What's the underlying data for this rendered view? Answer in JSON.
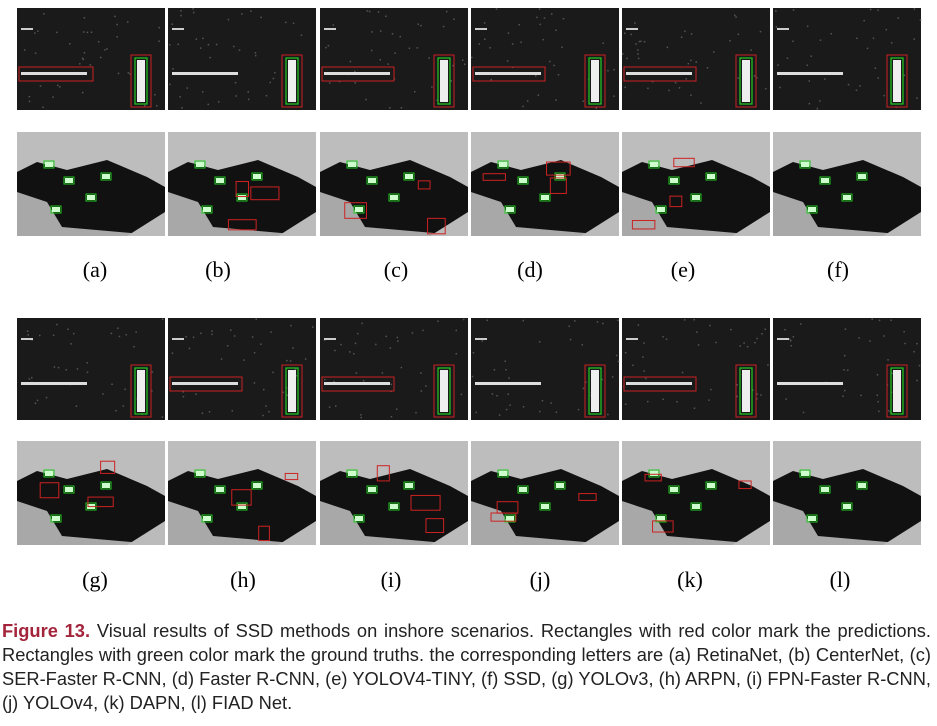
{
  "labels": [
    "(a)",
    "(b)",
    "(c)",
    "(d)",
    "(e)",
    "(f)",
    "(g)",
    "(h)",
    "(i)",
    "(j)",
    "(k)",
    "(l)"
  ],
  "caption": {
    "figure_label": "Figure 13.",
    "text": "Visual results of SSD methods on inshore scenarios. Rectangles with red color mark the predictions. Rectangles with green color mark the ground truths. the corresponding letters are (a) RetinaNet, (b) CenterNet, (c) SER-Faster R-CNN, (d) Faster R-CNN, (e) YOLOV4-TINY, (f) SSD, (g) YOLOv3, (h) ARPN, (i) FPN-Faster R-CNN, (j) YOLOv4, (k) DAPN, (l) FIAD Net."
  }
}
